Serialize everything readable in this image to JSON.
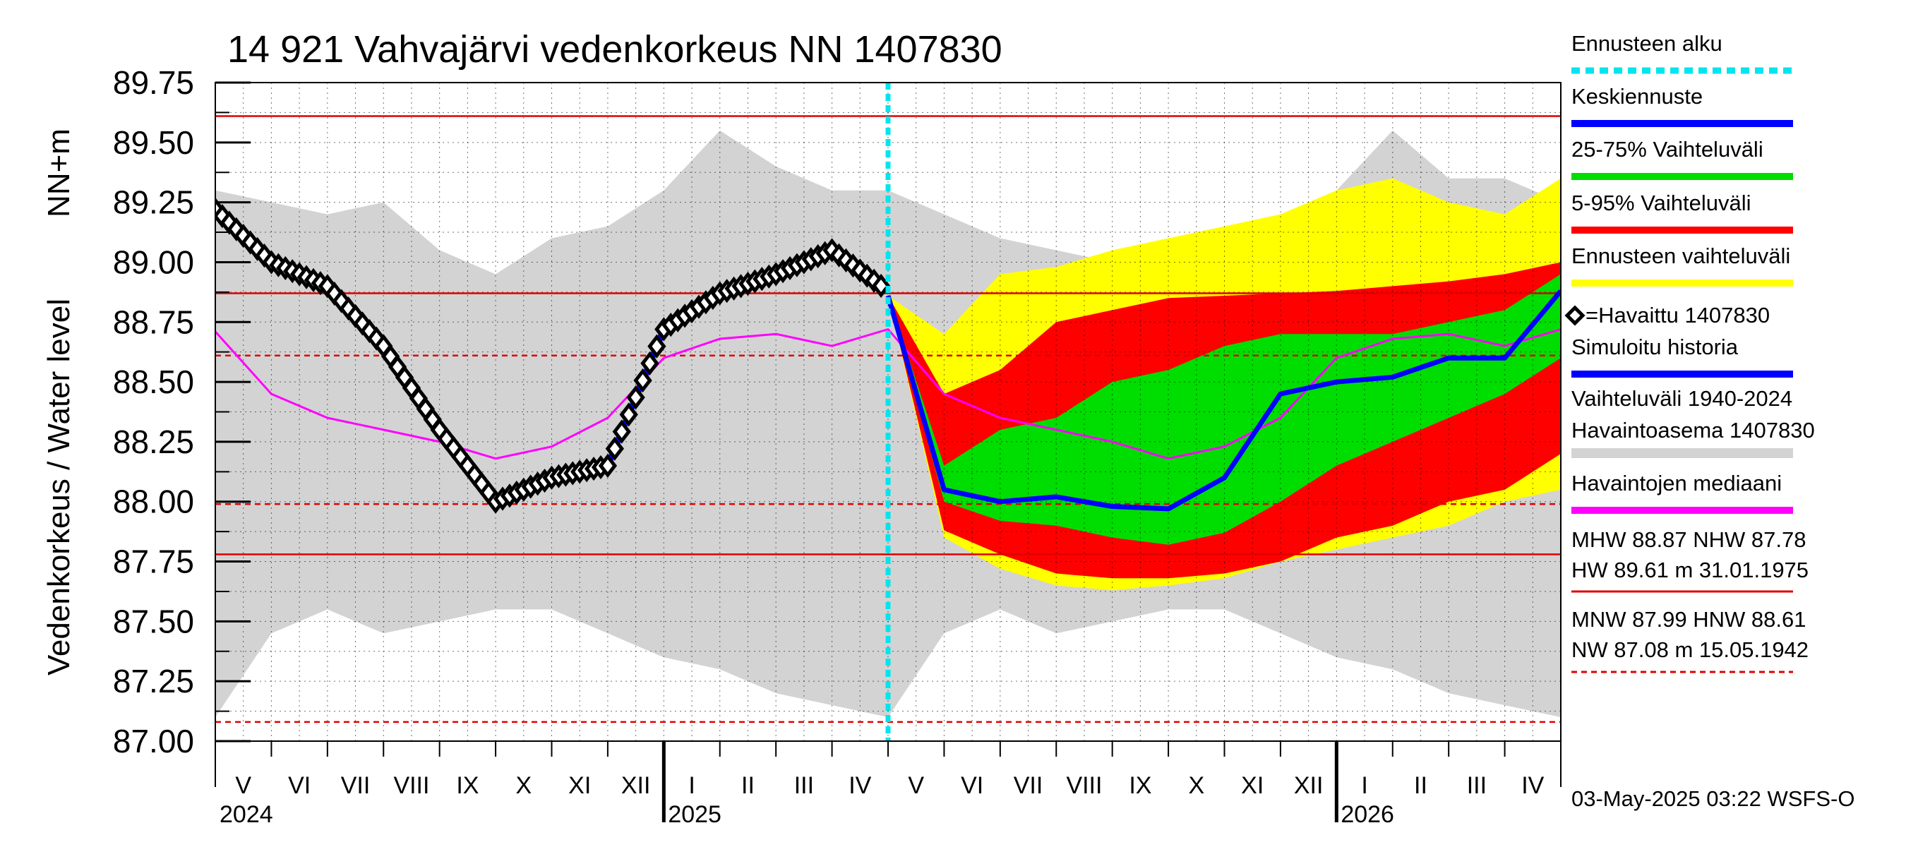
{
  "chart_data": {
    "type": "line",
    "title": "14 921 Vahvajärvi vedenkorkeus NN 1407830",
    "ylabel_left": "Vedenkorkeus / Water level",
    "ylabel_unit": "NN+m",
    "ylim": [
      87.0,
      89.75
    ],
    "yticks": [
      "89.75",
      "89.50",
      "89.25",
      "89.00",
      "88.75",
      "88.50",
      "88.25",
      "88.00",
      "87.75",
      "87.50",
      "87.25",
      "87.00"
    ],
    "month_labels": [
      "V",
      "VI",
      "VII",
      "VIII",
      "IX",
      "X",
      "XI",
      "XII",
      "I",
      "II",
      "III",
      "IV",
      "V",
      "VI",
      "VII",
      "VIII",
      "IX",
      "X",
      "XI",
      "XII",
      "I",
      "II",
      "III",
      "IV"
    ],
    "year_labels": [
      "2024",
      "2025",
      "2026"
    ],
    "forecast_start_month": 12,
    "reference_lines": {
      "solid": [
        89.61,
        88.87,
        87.78
      ],
      "dashed": [
        88.61,
        87.99,
        87.08
      ]
    },
    "series": [
      {
        "name": "Vaihteluväli 1940-2024 (upper)",
        "values": [
          89.3,
          89.25,
          89.2,
          89.25,
          89.05,
          88.95,
          89.1,
          89.15,
          89.3,
          89.55,
          89.4,
          89.3,
          89.3,
          89.2,
          89.1,
          89.05,
          89.0,
          88.95,
          89.0,
          89.1,
          89.3,
          89.55,
          89.35,
          89.35,
          89.25
        ]
      },
      {
        "name": "Vaihteluväli 1940-2024 (lower)",
        "values": [
          87.1,
          87.45,
          87.55,
          87.45,
          87.5,
          87.55,
          87.55,
          87.45,
          87.35,
          87.3,
          87.2,
          87.15,
          87.1,
          87.45,
          87.55,
          87.45,
          87.5,
          87.55,
          87.55,
          87.45,
          87.35,
          87.3,
          87.2,
          87.15,
          87.1
        ]
      },
      {
        "name": "Havaittu 1407830",
        "values": [
          89.22,
          89.0,
          88.9,
          88.65,
          88.3,
          88.0,
          88.1,
          88.15,
          88.72,
          88.87,
          88.95,
          89.05,
          88.88
        ]
      },
      {
        "name": "Havaintojen mediaani",
        "values": [
          88.71,
          88.45,
          88.35,
          88.3,
          88.25,
          88.18,
          88.23,
          88.35,
          88.6,
          88.68,
          88.7,
          88.65,
          88.72,
          88.45,
          88.35,
          88.3,
          88.25,
          88.18,
          88.23,
          88.35,
          88.6,
          88.68,
          88.7,
          88.65,
          88.72
        ]
      },
      {
        "name": "Keskiennuste",
        "values": [
          88.86,
          88.05,
          88.0,
          88.02,
          87.98,
          87.97,
          88.1,
          88.45,
          88.5,
          88.52,
          88.6,
          88.6,
          88.88
        ]
      },
      {
        "name": "5-95% upper",
        "values": [
          88.86,
          88.45,
          88.55,
          88.75,
          88.8,
          88.85,
          88.86,
          88.87,
          88.88,
          88.9,
          88.92,
          88.95,
          89.0
        ]
      },
      {
        "name": "5-95% lower",
        "values": [
          88.86,
          87.88,
          87.78,
          87.7,
          87.68,
          87.68,
          87.7,
          87.75,
          87.85,
          87.9,
          88.0,
          88.05,
          88.2
        ]
      },
      {
        "name": "25-75% upper",
        "values": [
          88.86,
          88.15,
          88.3,
          88.35,
          88.5,
          88.55,
          88.65,
          88.7,
          88.7,
          88.7,
          88.75,
          88.8,
          88.95
        ]
      },
      {
        "name": "25-75% lower",
        "values": [
          88.86,
          88.0,
          87.92,
          87.9,
          87.85,
          87.82,
          87.87,
          88.0,
          88.15,
          88.25,
          88.35,
          88.45,
          88.6
        ]
      },
      {
        "name": "Ennusteen vaihteluväli upper",
        "values": [
          88.86,
          88.7,
          88.95,
          88.98,
          89.05,
          89.1,
          89.15,
          89.2,
          89.3,
          89.35,
          89.25,
          89.2,
          89.35
        ]
      },
      {
        "name": "Ennusteen vaihteluväli lower",
        "values": [
          88.86,
          87.85,
          87.72,
          87.65,
          87.63,
          87.65,
          87.68,
          87.75,
          87.8,
          87.85,
          87.9,
          88.0,
          88.05
        ]
      }
    ]
  },
  "legend": [
    {
      "label": "Ennusteen alku",
      "color": "#00e5ee",
      "style": "dashed"
    },
    {
      "label": "Keskiennuste",
      "color": "#0000ff",
      "style": "solid"
    },
    {
      "label": "25-75% Vaihteluväli",
      "color": "#00dd00",
      "style": "solid"
    },
    {
      "label": "5-95% Vaihteluväli",
      "color": "#ff0000",
      "style": "solid"
    },
    {
      "label": "Ennusteen vaihteluväli",
      "color": "#ffff00",
      "style": "solid"
    },
    {
      "label": "=Havaittu 1407830",
      "color": "#000000",
      "style": "diamond"
    },
    {
      "label": "Simuloitu historia",
      "color": "#0000ff",
      "style": "solid"
    },
    {
      "label": "Vaihteluväli 1940-2024",
      "color": "#d3d3d3",
      "style": "solid"
    },
    {
      "label": " Havaintoasema 1407830",
      "color": "#d3d3d3",
      "style": "none"
    },
    {
      "label": "Havaintojen mediaani",
      "color": "#ff00ff",
      "style": "solid"
    }
  ],
  "stats": {
    "line1": "MHW  88.87 NHW  87.78",
    "line2": "HW  89.61 m 31.01.1975",
    "line3": "MNW  87.99 HNW  88.61",
    "line4": "NW  87.08 m 15.05.1942"
  },
  "footer": "03-May-2025 03:22 WSFS-O",
  "colors": {
    "grey_band": "#d3d3d3",
    "yellow": "#ffff00",
    "red": "#ff0000",
    "green": "#00dd00",
    "blue": "#0000ff",
    "magenta": "#ff00ff",
    "cyan": "#00e5ee",
    "refline": "#e00000"
  }
}
